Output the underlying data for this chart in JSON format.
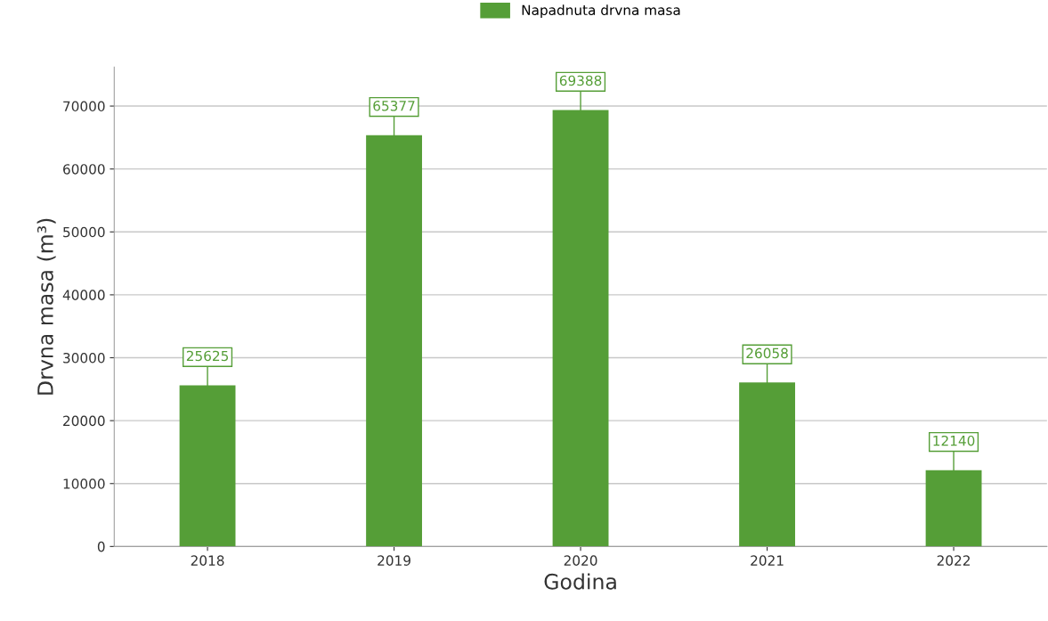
{
  "chart_data": {
    "type": "bar",
    "xlabel": "Godina",
    "ylabel": "Drvna masa (m³)",
    "categories": [
      "2018",
      "2019",
      "2020",
      "2021",
      "2022"
    ],
    "series": [
      {
        "name": "Napadnuta drvna masa",
        "color": "#559e37",
        "values": [
          25625,
          65377,
          69388,
          26058,
          12140
        ]
      }
    ],
    "ylim": [
      0,
      76200
    ],
    "yticks": [
      0,
      10000,
      20000,
      30000,
      40000,
      50000,
      60000,
      70000
    ],
    "grid": "y",
    "legend": "top",
    "data_labels": true
  }
}
